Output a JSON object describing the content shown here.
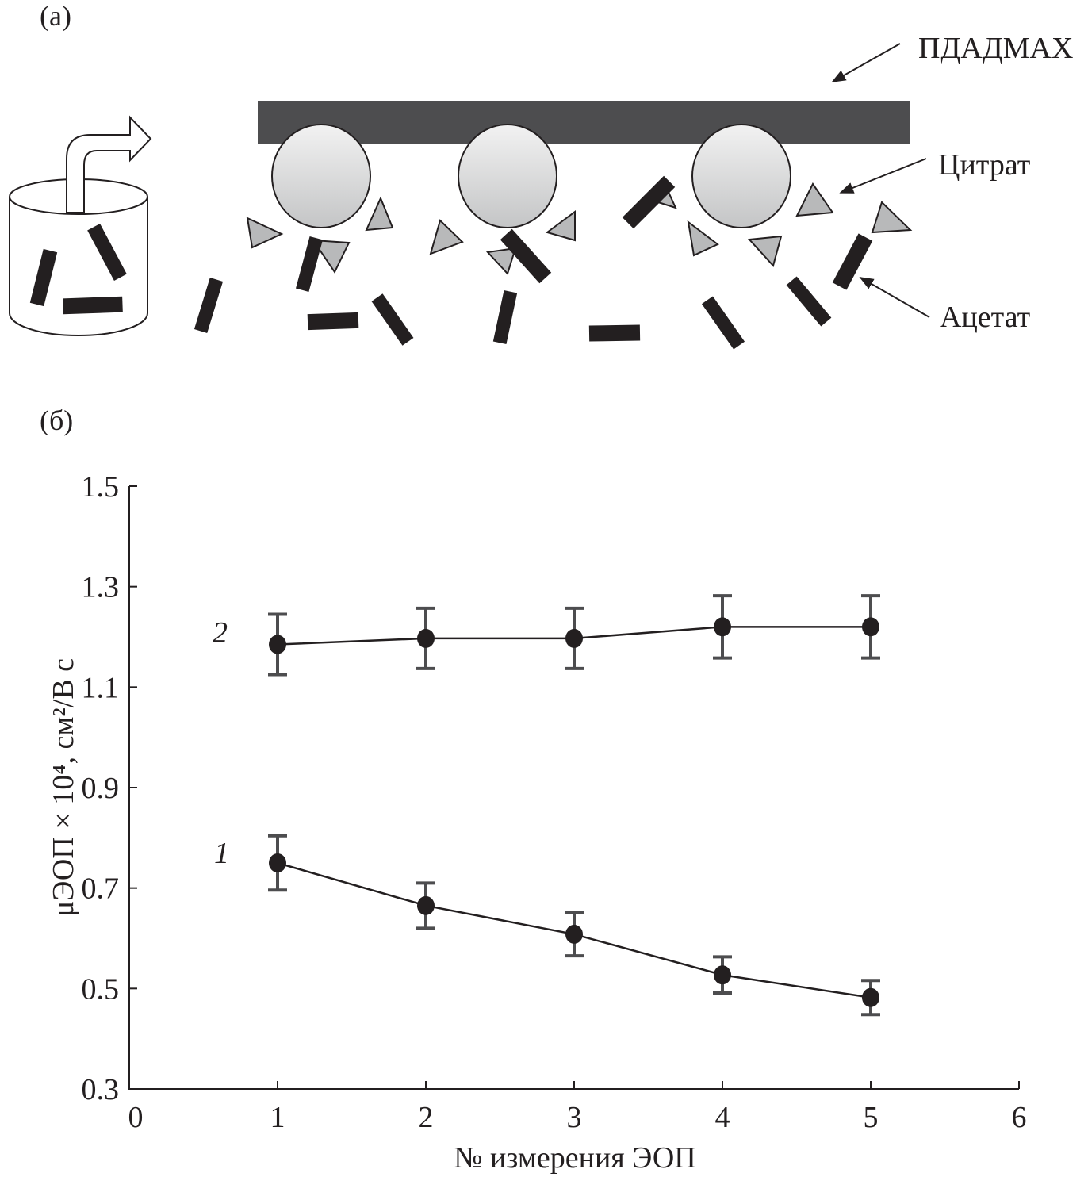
{
  "panel_a": {
    "label": "(а)",
    "labels": {
      "polymer": "ПДАДМАХ",
      "citrate": "Цитрат",
      "acetate": "Ацетат"
    },
    "colors": {
      "polymer_bar": "#4d4d4f",
      "citrate": "#b8b9ba",
      "acetate": "#231f20"
    }
  },
  "panel_b": {
    "label": "(б)"
  },
  "chart_data": {
    "type": "line",
    "xlabel": "№ измерения ЭОП",
    "ylabel": "μЭОП × 10⁴, см²/В с",
    "xlim": [
      0,
      6
    ],
    "ylim": [
      0.3,
      1.5
    ],
    "xticks": [
      "0",
      "1",
      "2",
      "3",
      "4",
      "5",
      "6"
    ],
    "yticks": [
      "0.3",
      "0.5",
      "0.7",
      "0.9",
      "1.1",
      "1.3",
      "1.5"
    ],
    "grid": false,
    "x": [
      1,
      2,
      3,
      4,
      5
    ],
    "series": [
      {
        "name": "1",
        "values": [
          0.75,
          0.665,
          0.608,
          0.527,
          0.482
        ],
        "errors": [
          0.054,
          0.045,
          0.043,
          0.036,
          0.034
        ]
      },
      {
        "name": "2",
        "values": [
          1.185,
          1.197,
          1.197,
          1.22,
          1.22
        ],
        "errors": [
          0.06,
          0.06,
          0.06,
          0.062,
          0.062
        ]
      }
    ],
    "colors": {
      "line": "#231f20",
      "error_bar": "#4d4d4f"
    }
  }
}
